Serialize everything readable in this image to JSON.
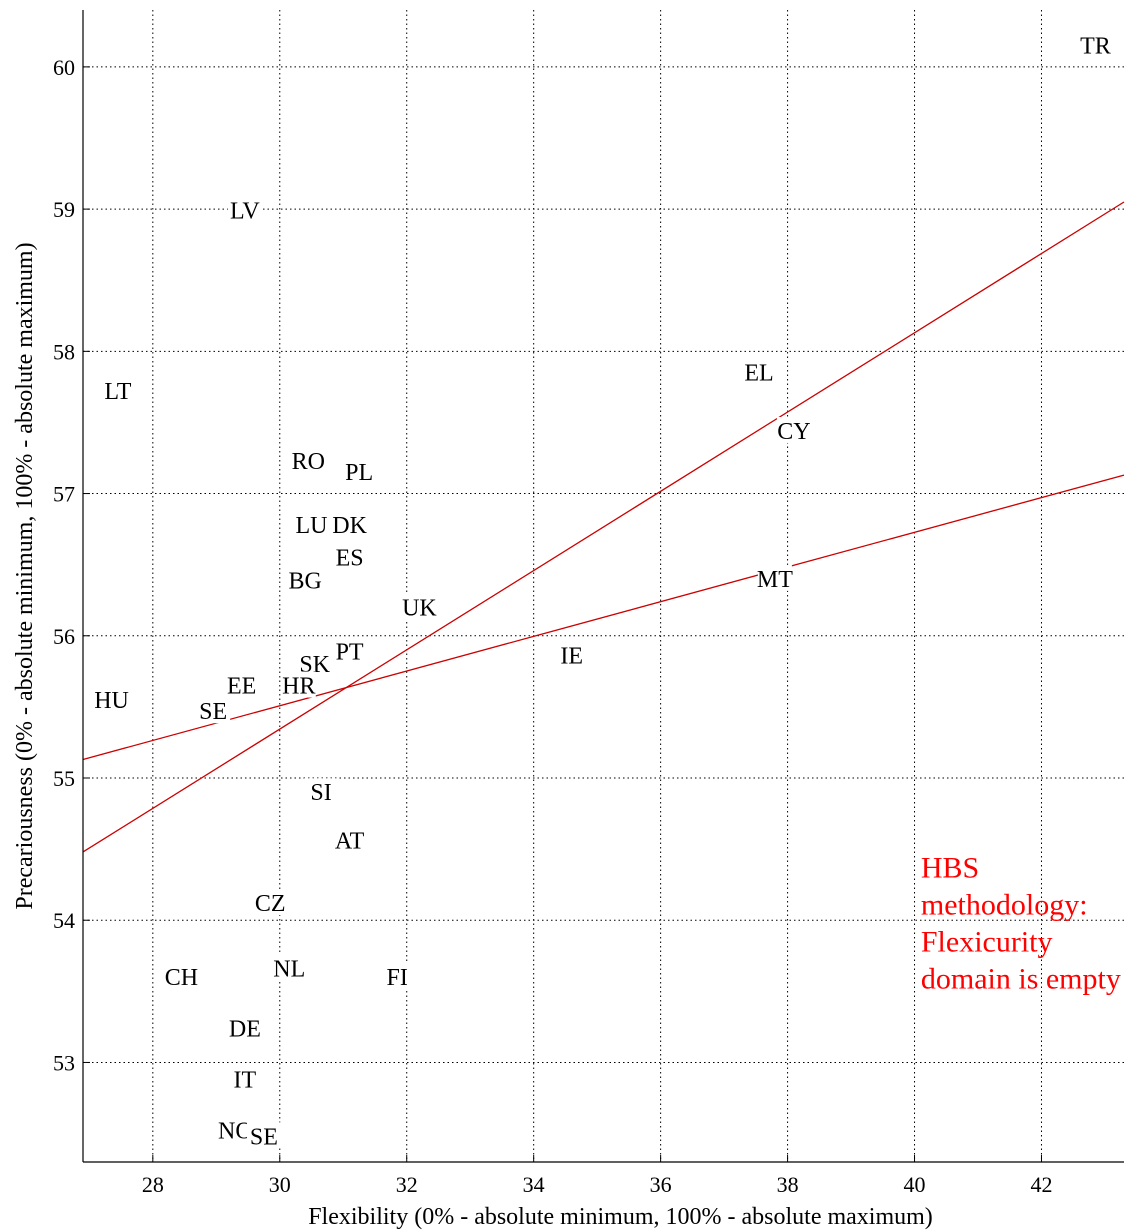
{
  "chart_data": {
    "type": "scatter",
    "xlabel": "Flexibility (0% - absolute minimum, 100% - absolute maximum)",
    "ylabel": "Precariousness (0% - absolute minimum, 100% - absolute maximum)",
    "xlim": [
      26.9,
      43.3
    ],
    "ylim": [
      52.3,
      60.4
    ],
    "xticks": [
      28,
      30,
      32,
      34,
      36,
      38,
      40,
      42
    ],
    "yticks": [
      53,
      54,
      55,
      56,
      57,
      58,
      59,
      60
    ],
    "grid": true,
    "points": [
      {
        "label": "TR",
        "x": 42.85,
        "y": 60.15
      },
      {
        "label": "LV",
        "x": 29.45,
        "y": 58.99
      },
      {
        "label": "LT",
        "x": 27.45,
        "y": 57.72
      },
      {
        "label": "EL",
        "x": 37.55,
        "y": 57.85
      },
      {
        "label": "CY",
        "x": 38.1,
        "y": 57.44
      },
      {
        "label": "RO",
        "x": 30.45,
        "y": 57.23
      },
      {
        "label": "PL",
        "x": 31.25,
        "y": 57.15
      },
      {
        "label": "LU",
        "x": 30.5,
        "y": 56.78
      },
      {
        "label": "DK",
        "x": 31.1,
        "y": 56.78
      },
      {
        "label": "ES",
        "x": 31.1,
        "y": 56.55
      },
      {
        "label": "BG",
        "x": 30.4,
        "y": 56.39
      },
      {
        "label": "MT",
        "x": 37.8,
        "y": 56.4
      },
      {
        "label": "UK",
        "x": 32.2,
        "y": 56.2
      },
      {
        "label": "IE",
        "x": 34.6,
        "y": 55.86
      },
      {
        "label": "PT",
        "x": 31.1,
        "y": 55.89
      },
      {
        "label": "SK",
        "x": 30.55,
        "y": 55.8
      },
      {
        "label": "HR",
        "x": 30.3,
        "y": 55.65
      },
      {
        "label": "EE",
        "x": 29.4,
        "y": 55.65
      },
      {
        "label": "HU",
        "x": 27.35,
        "y": 55.55
      },
      {
        "label": "SE",
        "x": 28.95,
        "y": 55.47
      },
      {
        "label": "SI",
        "x": 30.65,
        "y": 54.9
      },
      {
        "label": "AT",
        "x": 31.1,
        "y": 54.56
      },
      {
        "label": "CZ",
        "x": 29.85,
        "y": 54.12
      },
      {
        "label": "NL",
        "x": 30.15,
        "y": 53.66
      },
      {
        "label": "FI",
        "x": 31.85,
        "y": 53.6
      },
      {
        "label": "CH",
        "x": 28.45,
        "y": 53.6
      },
      {
        "label": "DE",
        "x": 29.45,
        "y": 53.24
      },
      {
        "label": "IT",
        "x": 29.45,
        "y": 52.88
      },
      {
        "label": "NO",
        "x": 29.3,
        "y": 52.52
      },
      {
        "label": "SE",
        "x": 29.75,
        "y": 52.48
      }
    ],
    "lines": [
      {
        "color": "#cc0000",
        "x": [
          26.9,
          43.3
        ],
        "y": [
          54.48,
          59.05
        ]
      },
      {
        "color": "#cc0000",
        "x": [
          26.9,
          43.3
        ],
        "y": [
          55.13,
          57.13
        ]
      }
    ],
    "annotation": {
      "lines": [
        "HBS",
        "methodology:",
        "Flexicurity",
        "domain is empty"
      ],
      "color": "#ff0000",
      "x": 40.1,
      "y": 54.3
    }
  }
}
